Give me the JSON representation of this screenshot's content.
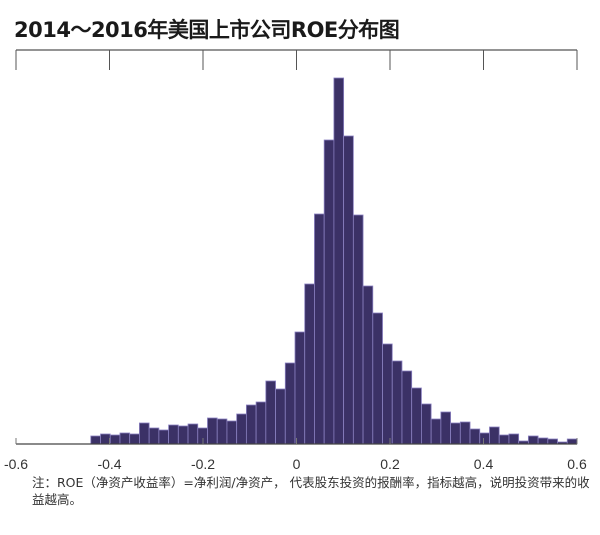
{
  "chart_data": {
    "type": "bar",
    "title": "2014～2016年美国上市公司ROE分布图",
    "xlabel": "",
    "ylabel": "",
    "xlim": [
      -0.6,
      0.6
    ],
    "xticks": [
      "-0.6",
      "-0.4",
      "-0.2",
      "0",
      "0.2",
      "0.4",
      "0.6"
    ],
    "xtick_values": [
      -0.6,
      -0.4,
      -0.2,
      0,
      0.2,
      0.4,
      0.6
    ],
    "grid": false,
    "bar_color": "#3b3166",
    "bar_edge_color": "#8a80c0",
    "bin_start": -0.44,
    "bin_end": 0.6,
    "values": [
      8,
      10,
      9,
      11,
      10,
      21,
      16,
      14,
      19,
      18,
      20,
      16,
      26,
      25,
      23,
      30,
      39,
      42,
      63,
      55,
      81,
      112,
      160,
      230,
      304,
      366,
      308,
      229,
      158,
      131,
      100,
      83,
      73,
      56,
      40,
      25,
      32,
      21,
      22,
      15,
      11,
      17,
      9,
      10,
      3,
      8,
      6,
      5,
      2,
      5
    ]
  },
  "note": "注：ROE（净资产收益率）=净利润/净资产， 代表股东投资的报酬率，指标越高，说明投资带来的收益越高。"
}
